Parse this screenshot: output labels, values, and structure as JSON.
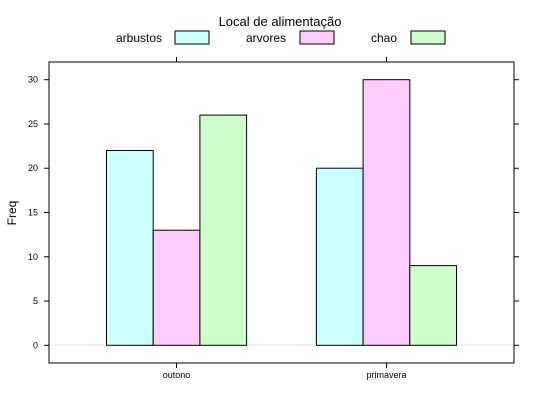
{
  "chart_data": {
    "type": "bar",
    "legend_title": "Local de alimentação",
    "legend_placement": "top",
    "ylabel": "Freq",
    "xlabel": "",
    "categories": [
      "outono",
      "primavera"
    ],
    "series": [
      {
        "name": "arbustos",
        "values": [
          22,
          20
        ],
        "color": "#ccffff"
      },
      {
        "name": "arvores",
        "values": [
          13,
          30
        ],
        "color": "#ffccff"
      },
      {
        "name": "chao",
        "values": [
          26,
          9
        ],
        "color": "#ccffcc"
      }
    ],
    "yticks": [
      "0",
      "5",
      "10",
      "15",
      "20",
      "25",
      "30"
    ],
    "ylim": [
      -2,
      32
    ],
    "grid": false
  }
}
